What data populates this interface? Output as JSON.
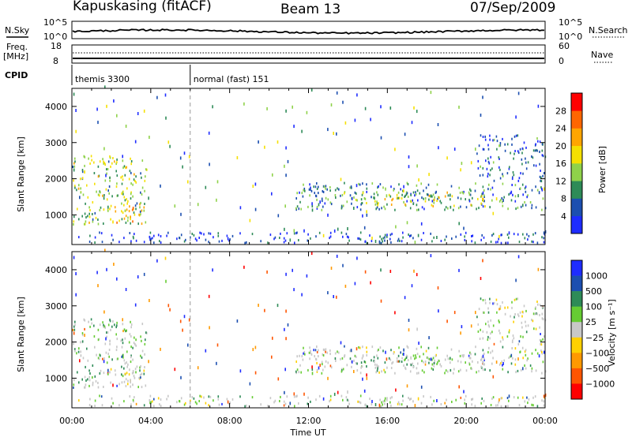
{
  "header": {
    "station": "Kapuskasing (fitACF)",
    "beam": "Beam 13",
    "date": "07/Sep/2009"
  },
  "status_panel": {
    "left_labels": {
      "nsky": "N.Sky",
      "freq": "Freq.",
      "mhz": "[MHz]",
      "cpid": "CPID"
    },
    "right_labels": {
      "nsearch": "N.Search",
      "nave": "Nave"
    },
    "noise_ticks": {
      "top": "10^5",
      "bottom": "10^0"
    },
    "freq_ticks": {
      "top": "18",
      "bottom": "8"
    },
    "nave_ticks": {
      "top": "60",
      "bottom": "0"
    }
  },
  "cpid_segments": [
    {
      "label": "themis 3300",
      "start_hr": 0.0,
      "end_hr": 6.0
    },
    {
      "label": "normal (fast) 151",
      "start_hr": 6.0,
      "end_hr": 24.0
    }
  ],
  "axes": {
    "x_label": "Time UT",
    "x_ticks": [
      "00:00",
      "04:00",
      "08:00",
      "12:00",
      "16:00",
      "20:00",
      "00:00"
    ],
    "y_label": "Slant Range [km]",
    "y_ticks": [
      "1000",
      "2000",
      "3000",
      "4000"
    ]
  },
  "power_colorbar": {
    "label": "Power [dB]",
    "ticks": [
      "4",
      "8",
      "12",
      "16",
      "20",
      "24",
      "28"
    ],
    "colors": [
      "#1e2cff",
      "#1c4fb0",
      "#2e8b57",
      "#8fd24a",
      "#f5e000",
      "#ffa500",
      "#ff6600",
      "#ff0000"
    ]
  },
  "velocity_colorbar": {
    "label": "Velocity [m s⁻¹]",
    "ticks": [
      "1000",
      "500",
      "100",
      "25",
      "−25",
      "−100",
      "−500",
      "−1000"
    ],
    "colors": [
      "#1e2cff",
      "#1c4fb0",
      "#2e8b57",
      "#66cc33",
      "#c8c8c8",
      "#ffd000",
      "#ff9900",
      "#ff5500",
      "#ff0000"
    ]
  },
  "chart_data": {
    "type": "heatmap",
    "x_range_hr": [
      0,
      24
    ],
    "y_range_km": [
      180,
      4500
    ],
    "scatter_regions": [
      {
        "t0": 0.0,
        "t1": 3.8,
        "r0": 700,
        "r1": 2600,
        "power": 14,
        "velocity": 10
      },
      {
        "t0": 1.8,
        "t1": 3.8,
        "r0": 750,
        "r1": 1250,
        "power": 21,
        "velocity": -20
      },
      {
        "t0": 11.3,
        "t1": 24.0,
        "r0": 1100,
        "r1": 1850,
        "power": 9,
        "velocity": 0
      },
      {
        "t0": 13.5,
        "t1": 21.0,
        "r0": 1200,
        "r1": 1600,
        "power": 15,
        "velocity": 5
      },
      {
        "t0": 20.5,
        "t1": 24.0,
        "r0": 1900,
        "r1": 3200,
        "power": 6,
        "velocity": 0
      },
      {
        "t0": 0.0,
        "t1": 24.0,
        "r0": 180,
        "r1": 480,
        "power": 5,
        "velocity": 0
      }
    ],
    "gap_line_hr": 6.0
  }
}
